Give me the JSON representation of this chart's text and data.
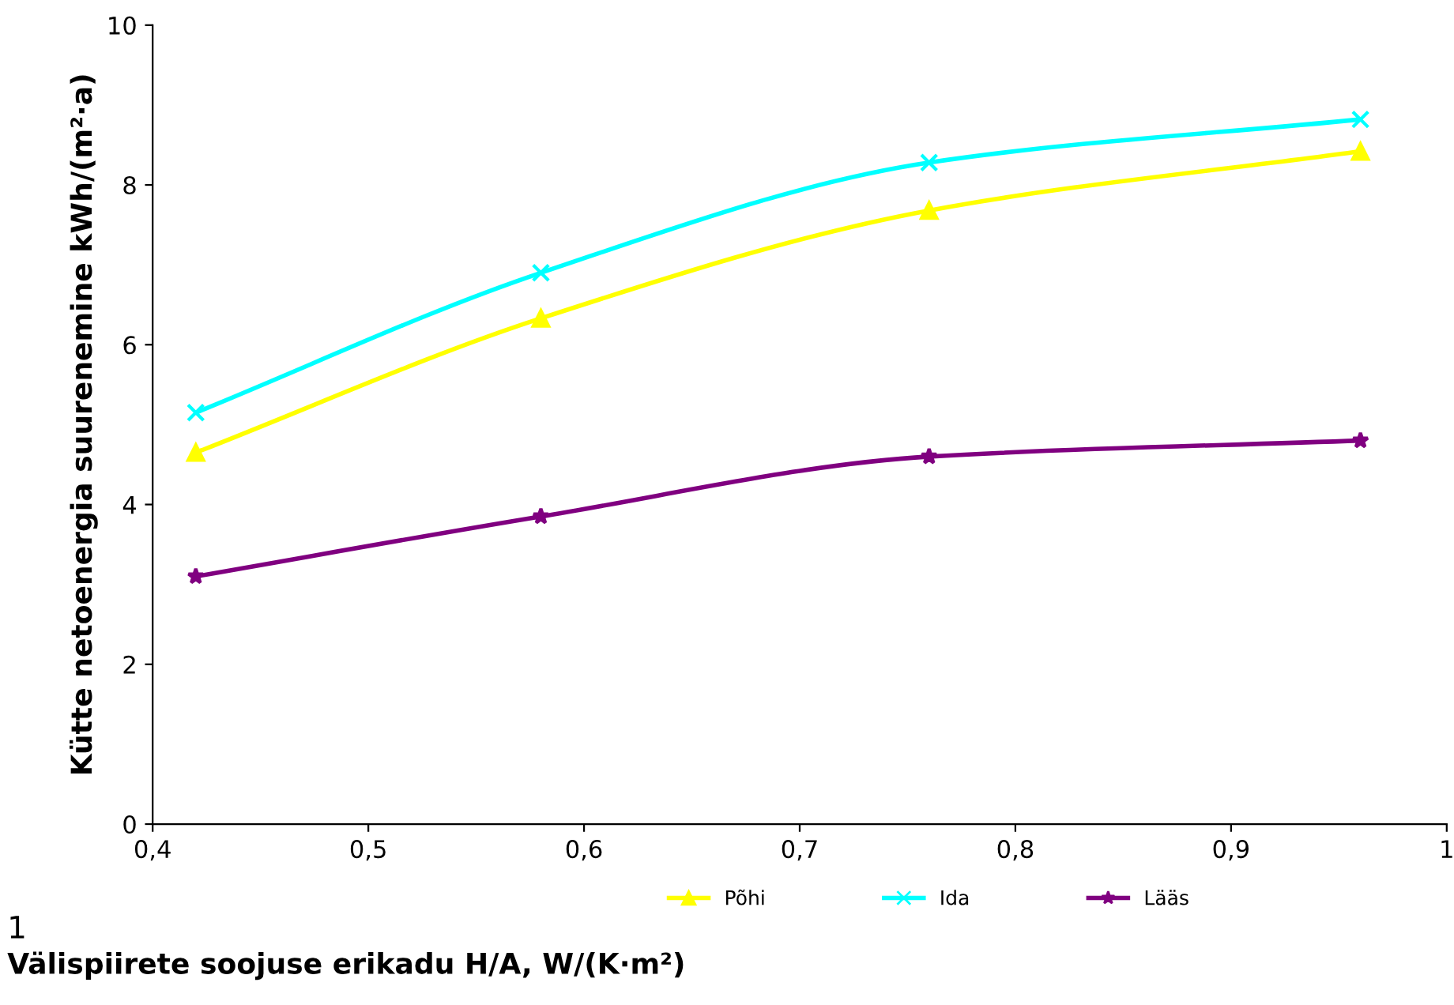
{
  "chart_data": {
    "type": "line",
    "xlabel": "Välispiirete soojuse erikadu H/A, W/(K·m²)",
    "ylabel": "Kütte netoenergia suurenemine kWh/(m²·a)",
    "x": [
      0.42,
      0.58,
      0.76,
      0.96
    ],
    "series": [
      {
        "name": "Põhi",
        "color": "#ffff00",
        "marker": "triangle",
        "values": [
          4.65,
          6.33,
          7.68,
          8.42
        ]
      },
      {
        "name": "Ida",
        "color": "#00ffff",
        "marker": "cross",
        "values": [
          5.15,
          6.9,
          8.28,
          8.82
        ]
      },
      {
        "name": "Lääs",
        "color": "#800080",
        "marker": "star",
        "values": [
          3.1,
          3.85,
          4.6,
          4.8
        ]
      }
    ],
    "xlim": [
      0.4,
      1
    ],
    "xticks": [
      {
        "value": 0.4,
        "label": "0,4"
      },
      {
        "value": 0.5,
        "label": "0,5"
      },
      {
        "value": 0.6,
        "label": "0,6"
      },
      {
        "value": 0.7,
        "label": "0,7"
      },
      {
        "value": 0.8,
        "label": "0,8"
      },
      {
        "value": 0.9,
        "label": "0,9"
      },
      1
    ],
    "ylim": [
      0,
      10
    ],
    "yticks": [
      0,
      2,
      4,
      6,
      8,
      10
    ],
    "grid": false,
    "legend": "bottom",
    "line_style": "solid",
    "annotations": [
      "1"
    ]
  }
}
